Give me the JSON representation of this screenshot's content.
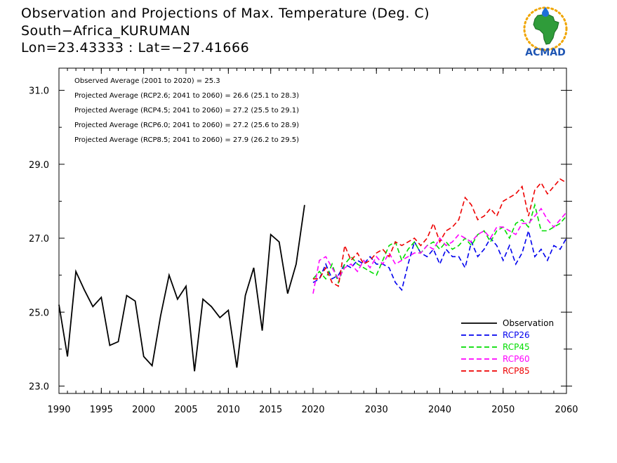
{
  "title": {
    "line1": "Observation and Projections of Max. Temperature (Deg. C)",
    "line2": "South−Africa_KURUMAN",
    "line3": "Lon=23.43333 : Lat=−27.41666"
  },
  "logo": {
    "text": "ACMAD",
    "icon": "africa-sun-logo-icon"
  },
  "annotations": [
    "Observed Average (2001 to 2020) = 25.3",
    "Projected Average (RCP2.6; 2041 to 2060) = 26.6 (25.1 to 28.3)",
    "Projected Average (RCP4.5; 2041 to 2060) = 27.2 (25.5 to 29.1)",
    "Projected Average (RCP6.0; 2041 to 2060) = 27.2 (25.6 to 28.9)",
    "Projected Average (RCP8.5; 2041 to 2060) = 27.9 (26.2 to 29.5)"
  ],
  "chart_data": {
    "type": "line",
    "x_tick_labels": [
      "1990",
      "1995",
      "2000",
      "2005",
      "2010",
      "2015",
      "2020",
      "2030",
      "2040",
      "2050",
      "2060"
    ],
    "y_tick_labels": [
      "23.0",
      "25.0",
      "27.0",
      "29.0",
      "31.0"
    ],
    "ylim": [
      22.8,
      31.6
    ],
    "grid": false,
    "legend_placement": "bottom-right",
    "x_axis_note": "piecewise scale: 1990–2020 compressed segment, 2020–2060 second segment",
    "series": [
      {
        "name": "Observation",
        "color": "#000000",
        "dash": "solid",
        "x": [
          1990,
          1991,
          1992,
          1993,
          1994,
          1995,
          1996,
          1997,
          1998,
          1999,
          2000,
          2001,
          2002,
          2003,
          2004,
          2005,
          2006,
          2007,
          2008,
          2009,
          2010,
          2011,
          2012,
          2013,
          2014,
          2015,
          2016,
          2017,
          2018,
          2019
        ],
        "values": [
          25.2,
          23.8,
          26.1,
          25.6,
          25.15,
          25.4,
          24.1,
          24.2,
          25.45,
          25.3,
          23.8,
          23.55,
          24.9,
          26.0,
          25.35,
          25.7,
          23.4,
          25.35,
          25.15,
          24.85,
          25.05,
          23.5,
          25.45,
          26.2,
          24.5,
          27.1,
          26.9,
          25.5,
          26.3,
          27.9
        ]
      },
      {
        "name": "RCP26",
        "color": "#0000ee",
        "dash": "dashed",
        "x": [
          2020,
          2021,
          2022,
          2023,
          2024,
          2025,
          2026,
          2027,
          2028,
          2029,
          2030,
          2031,
          2032,
          2033,
          2034,
          2035,
          2036,
          2037,
          2038,
          2039,
          2040,
          2041,
          2042,
          2043,
          2044,
          2045,
          2046,
          2047,
          2048,
          2049,
          2050,
          2051,
          2052,
          2053,
          2054,
          2055,
          2056,
          2057,
          2058,
          2059,
          2060
        ],
        "values": [
          25.8,
          25.9,
          26.3,
          25.9,
          26.0,
          26.3,
          26.2,
          26.4,
          26.3,
          26.5,
          26.3,
          26.3,
          26.2,
          25.8,
          25.6,
          26.3,
          26.9,
          26.6,
          26.5,
          26.7,
          26.3,
          26.7,
          26.5,
          26.5,
          26.2,
          26.9,
          26.5,
          26.7,
          27.0,
          26.8,
          26.4,
          26.8,
          26.3,
          26.6,
          27.2,
          26.5,
          26.7,
          26.4,
          26.8,
          26.7,
          27.0
        ]
      },
      {
        "name": "RCP45",
        "color": "#00dd00",
        "dash": "dashed",
        "x": [
          2020,
          2021,
          2022,
          2023,
          2024,
          2025,
          2026,
          2027,
          2028,
          2029,
          2030,
          2031,
          2032,
          2033,
          2034,
          2035,
          2036,
          2037,
          2038,
          2039,
          2040,
          2041,
          2042,
          2043,
          2044,
          2045,
          2046,
          2047,
          2048,
          2049,
          2050,
          2051,
          2052,
          2053,
          2054,
          2055,
          2056,
          2057,
          2058,
          2059,
          2060
        ],
        "values": [
          25.9,
          26.1,
          25.9,
          26.3,
          25.8,
          26.3,
          26.5,
          26.3,
          26.2,
          26.1,
          26.0,
          26.4,
          26.8,
          26.9,
          26.4,
          26.7,
          26.9,
          26.6,
          26.8,
          26.9,
          26.7,
          26.9,
          26.7,
          26.8,
          27.0,
          26.8,
          27.1,
          27.2,
          26.9,
          27.2,
          27.3,
          27.0,
          27.4,
          27.5,
          27.3,
          27.9,
          27.2,
          27.2,
          27.3,
          27.4,
          27.6
        ]
      },
      {
        "name": "RCP60",
        "color": "#ff00ff",
        "dash": "dashed",
        "x": [
          2020,
          2021,
          2022,
          2023,
          2024,
          2025,
          2026,
          2027,
          2028,
          2029,
          2030,
          2031,
          2032,
          2033,
          2034,
          2035,
          2036,
          2037,
          2038,
          2039,
          2040,
          2041,
          2042,
          2043,
          2044,
          2045,
          2046,
          2047,
          2048,
          2049,
          2050,
          2051,
          2052,
          2053,
          2054,
          2055,
          2056,
          2057,
          2058,
          2059,
          2060
        ],
        "values": [
          25.5,
          26.4,
          26.5,
          26.2,
          25.9,
          26.2,
          26.3,
          26.1,
          26.4,
          26.2,
          26.5,
          26.3,
          26.6,
          26.3,
          26.4,
          26.5,
          26.6,
          26.6,
          26.8,
          26.7,
          27.0,
          26.8,
          26.9,
          27.1,
          27.0,
          26.9,
          27.1,
          27.2,
          27.0,
          27.3,
          27.3,
          27.2,
          27.1,
          27.4,
          27.4,
          27.6,
          27.8,
          27.5,
          27.3,
          27.5,
          27.7
        ]
      },
      {
        "name": "RCP85",
        "color": "#ee0000",
        "dash": "dashed",
        "x": [
          2020,
          2021,
          2022,
          2023,
          2024,
          2025,
          2026,
          2027,
          2028,
          2029,
          2030,
          2031,
          2032,
          2033,
          2034,
          2035,
          2036,
          2037,
          2038,
          2039,
          2040,
          2041,
          2042,
          2043,
          2044,
          2045,
          2046,
          2047,
          2048,
          2049,
          2050,
          2051,
          2052,
          2053,
          2054,
          2055,
          2056,
          2057,
          2058,
          2059,
          2060
        ],
        "values": [
          25.9,
          25.9,
          26.2,
          25.8,
          25.7,
          26.8,
          26.4,
          26.6,
          26.3,
          26.4,
          26.6,
          26.7,
          26.5,
          26.9,
          26.8,
          26.9,
          27.0,
          26.8,
          27.0,
          27.4,
          26.9,
          27.2,
          27.3,
          27.5,
          28.1,
          27.9,
          27.5,
          27.6,
          27.8,
          27.6,
          28.0,
          28.1,
          28.2,
          28.4,
          27.6,
          28.3,
          28.5,
          28.2,
          28.4,
          28.6,
          28.5
        ]
      }
    ]
  }
}
